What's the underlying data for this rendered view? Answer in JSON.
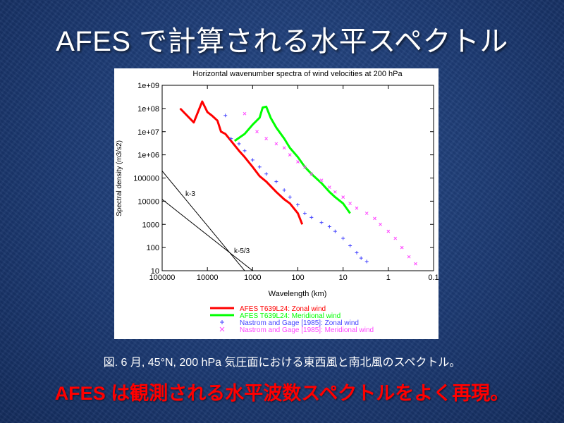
{
  "slide": {
    "title": "AFES で計算される水平スペクトル",
    "caption": "図. 6 月, 45°N, 200 hPa 気圧面における東西風と南北風のスペクトル。",
    "highlight": "AFES は観測される水平波数スペクトルをよく再現。"
  },
  "chart_data": {
    "type": "line",
    "title": "Horizontal wavenumber spectra of wind velocities at 200 hPa",
    "xlabel": "Wavelength (km)",
    "ylabel": "Spectral density (m3/s2)",
    "x_scale": "log",
    "y_scale": "log",
    "xlim": [
      100000,
      0.1
    ],
    "ylim": [
      10,
      1000000000
    ],
    "x_ticks": [
      "100000",
      "10000",
      "1000",
      "100",
      "10",
      "1",
      "0.1"
    ],
    "y_ticks": [
      "10",
      "100",
      "1000",
      "10000",
      "100000",
      "1e+06",
      "1e+07",
      "1e+08",
      "1e+09"
    ],
    "grid": false,
    "legend_position": "below",
    "series": [
      {
        "name": "AFES T639L24: Zonal wind",
        "color": "#ff0000",
        "style": "thick-line",
        "x": [
          40000,
          20000,
          13000,
          10000,
          8000,
          6000,
          5000,
          4000,
          3000,
          2000,
          1500,
          1000,
          700,
          500,
          300,
          200,
          150,
          100,
          80
        ],
        "y": [
          100000000,
          25000000,
          200000000,
          70000000,
          50000000,
          30000000,
          10000000,
          8000000,
          4000000,
          1500000,
          800000,
          300000,
          120000,
          70000,
          25000,
          12000,
          8000,
          3000,
          1000
        ]
      },
      {
        "name": "AFES T639L24: Meridional wind",
        "color": "#00ff00",
        "style": "thick-line",
        "x": [
          2500,
          1500,
          1000,
          700,
          600,
          500,
          400,
          300,
          200,
          150,
          100,
          70,
          50,
          30,
          20,
          15,
          10,
          7
        ],
        "y": [
          4000000,
          8000000,
          20000000,
          40000000,
          110000000,
          120000000,
          40000000,
          15000000,
          5000000,
          2000000,
          800000,
          300000,
          150000,
          60000,
          25000,
          15000,
          8000,
          3000
        ]
      },
      {
        "name": "Nastrom and Gage [1985]: Zonal wind",
        "color": "#4444ff",
        "style": "plus-markers",
        "x": [
          4000,
          3000,
          2000,
          1500,
          1000,
          700,
          500,
          300,
          200,
          150,
          100,
          70,
          50,
          30,
          20,
          15,
          10,
          7,
          5,
          4,
          3
        ],
        "y": [
          50000000,
          5000000,
          3000000,
          1500000,
          600000,
          300000,
          150000,
          70000,
          30000,
          15000,
          7000,
          3000,
          2000,
          1200,
          800,
          500,
          250,
          120,
          60,
          35,
          25
        ]
      },
      {
        "name": "Nastrom and Gage [1985]: Meridional wind",
        "color": "#ff44ff",
        "style": "x-markers",
        "x": [
          1500,
          800,
          500,
          300,
          200,
          150,
          100,
          70,
          50,
          30,
          20,
          15,
          10,
          7,
          5,
          3,
          2,
          1.5,
          1,
          0.7,
          0.5,
          0.35,
          0.25
        ],
        "y": [
          60000000,
          10000000,
          5000000,
          3000000,
          2000000,
          1000000,
          500000,
          300000,
          150000,
          80000,
          40000,
          25000,
          15000,
          8000,
          5000,
          3000,
          1800,
          1000,
          500,
          250,
          100,
          40,
          20
        ]
      }
    ],
    "reference_lines": [
      {
        "label": "k-3",
        "x": [
          100000,
          1500
        ],
        "y": [
          200000,
          10
        ]
      },
      {
        "label": "k-5/3",
        "x": [
          100000,
          1000
        ],
        "y": [
          12000,
          10
        ]
      }
    ]
  }
}
